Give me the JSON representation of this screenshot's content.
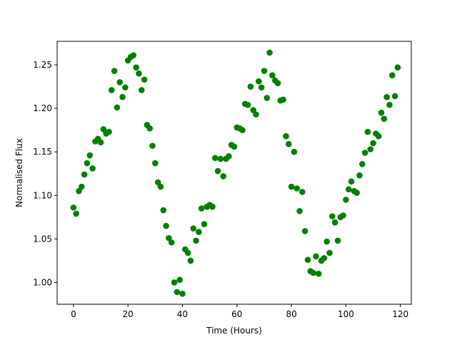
{
  "chart_data": {
    "type": "scatter",
    "title": "",
    "xlabel": "Time (Hours)",
    "ylabel": "Normalised Flux",
    "xlim": [
      -6,
      124
    ],
    "ylim": [
      0.975,
      1.277
    ],
    "xticks": [
      0,
      20,
      40,
      60,
      80,
      100,
      120
    ],
    "yticks": [
      1.0,
      1.05,
      1.1,
      1.15,
      1.2,
      1.25
    ],
    "ytick_labels": [
      "1.00",
      "1.05",
      "1.10",
      "1.15",
      "1.20",
      "1.25"
    ],
    "grid": false,
    "marker_color": "#008000",
    "series": [
      {
        "points": [
          [
            0,
            1.086
          ],
          [
            1,
            1.079
          ],
          [
            2,
            1.105
          ],
          [
            3,
            1.11
          ],
          [
            4,
            1.124
          ],
          [
            5,
            1.137
          ],
          [
            6,
            1.146
          ],
          [
            7,
            1.131
          ],
          [
            8,
            1.162
          ],
          [
            9,
            1.165
          ],
          [
            10,
            1.161
          ],
          [
            11,
            1.176
          ],
          [
            12,
            1.171
          ],
          [
            13,
            1.173
          ],
          [
            14,
            1.221
          ],
          [
            15,
            1.243
          ],
          [
            16,
            1.201
          ],
          [
            17,
            1.23
          ],
          [
            18,
            1.213
          ],
          [
            19,
            1.224
          ],
          [
            20,
            1.255
          ],
          [
            21,
            1.259
          ],
          [
            22,
            1.261
          ],
          [
            23,
            1.247
          ],
          [
            24,
            1.24
          ],
          [
            25,
            1.221
          ],
          [
            26,
            1.233
          ],
          [
            27,
            1.181
          ],
          [
            28,
            1.177
          ],
          [
            29,
            1.157
          ],
          [
            30,
            1.137
          ],
          [
            31,
            1.115
          ],
          [
            32,
            1.11
          ],
          [
            33,
            1.083
          ],
          [
            34,
            1.065
          ],
          [
            35,
            1.051
          ],
          [
            36,
            1.046
          ],
          [
            37,
            1.0
          ],
          [
            38,
            0.989
          ],
          [
            39,
            1.003
          ],
          [
            40,
            0.987
          ],
          [
            41,
            1.038
          ],
          [
            42,
            1.034
          ],
          [
            43,
            1.025
          ],
          [
            44,
            1.062
          ],
          [
            45,
            1.048
          ],
          [
            46,
            1.058
          ],
          [
            47,
            1.085
          ],
          [
            48,
            1.067
          ],
          [
            49,
            1.087
          ],
          [
            50,
            1.089
          ],
          [
            51,
            1.087
          ],
          [
            52,
            1.143
          ],
          [
            53,
            1.128
          ],
          [
            54,
            1.142
          ],
          [
            55,
            1.122
          ],
          [
            56,
            1.142
          ],
          [
            57,
            1.145
          ],
          [
            58,
            1.158
          ],
          [
            59,
            1.156
          ],
          [
            60,
            1.178
          ],
          [
            61,
            1.177
          ],
          [
            62,
            1.175
          ],
          [
            63,
            1.205
          ],
          [
            64,
            1.204
          ],
          [
            65,
            1.225
          ],
          [
            66,
            1.198
          ],
          [
            67,
            1.193
          ],
          [
            68,
            1.231
          ],
          [
            69,
            1.224
          ],
          [
            70,
            1.243
          ],
          [
            71,
            1.212
          ],
          [
            72,
            1.264
          ],
          [
            73,
            1.238
          ],
          [
            74,
            1.232
          ],
          [
            75,
            1.229
          ],
          [
            76,
            1.209
          ],
          [
            77,
            1.21
          ],
          [
            78,
            1.168
          ],
          [
            79,
            1.159
          ],
          [
            80,
            1.11
          ],
          [
            81,
            1.15
          ],
          [
            82,
            1.108
          ],
          [
            83,
            1.082
          ],
          [
            84,
            1.104
          ],
          [
            85,
            1.059
          ],
          [
            86,
            1.026
          ],
          [
            87,
            1.013
          ],
          [
            88,
            1.011
          ],
          [
            89,
            1.03
          ],
          [
            90,
            1.01
          ],
          [
            91,
            1.025
          ],
          [
            92,
            1.028
          ],
          [
            93,
            1.047
          ],
          [
            94,
            1.034
          ],
          [
            95,
            1.076
          ],
          [
            96,
            1.069
          ],
          [
            97,
            1.048
          ],
          [
            98,
            1.075
          ],
          [
            99,
            1.077
          ],
          [
            100,
            1.095
          ],
          [
            101,
            1.107
          ],
          [
            102,
            1.116
          ],
          [
            103,
            1.105
          ],
          [
            104,
            1.103
          ],
          [
            105,
            1.123
          ],
          [
            106,
            1.136
          ],
          [
            107,
            1.149
          ],
          [
            108,
            1.173
          ],
          [
            109,
            1.153
          ],
          [
            110,
            1.16
          ],
          [
            111,
            1.171
          ],
          [
            112,
            1.168
          ],
          [
            113,
            1.195
          ],
          [
            114,
            1.188
          ],
          [
            115,
            1.213
          ],
          [
            116,
            1.204
          ],
          [
            117,
            1.238
          ],
          [
            118,
            1.214
          ],
          [
            119,
            1.247
          ]
        ]
      }
    ]
  }
}
